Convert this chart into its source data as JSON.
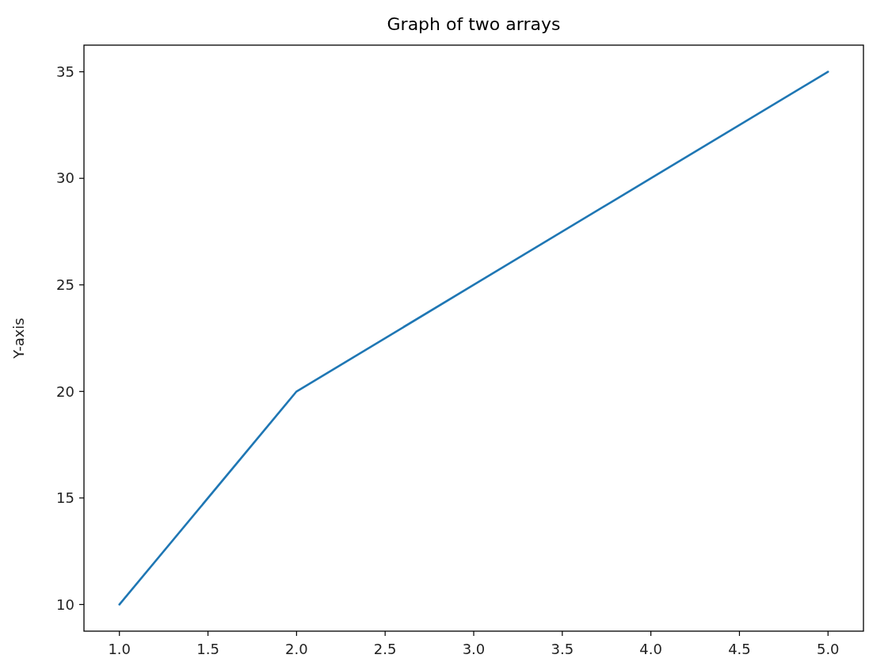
{
  "chart_data": {
    "type": "line",
    "title": "Graph of two arrays",
    "ylabel": "Y-axis",
    "x": [
      1,
      2,
      3,
      4,
      5
    ],
    "series": [
      {
        "color": "#1f77b4",
        "values": [
          10,
          20,
          25,
          30,
          35
        ]
      }
    ],
    "xlim": [
      0.8,
      5.2
    ],
    "xticks": [
      {
        "value": 1,
        "label": "1.0"
      },
      {
        "value": 1.5,
        "label": "1.5"
      },
      {
        "value": 2,
        "label": "2.0"
      },
      {
        "value": 2.5,
        "label": "2.5"
      },
      {
        "value": 3,
        "label": "3.0"
      },
      {
        "value": 3.5,
        "label": "3.5"
      },
      {
        "value": 4,
        "label": "4.0"
      },
      {
        "value": 4.5,
        "label": "4.5"
      },
      {
        "value": 5,
        "label": "5.0"
      }
    ],
    "ylim": [
      8.75,
      36.25
    ],
    "yticks": [
      10,
      15,
      20,
      25,
      30,
      35
    ],
    "grid": false
  }
}
